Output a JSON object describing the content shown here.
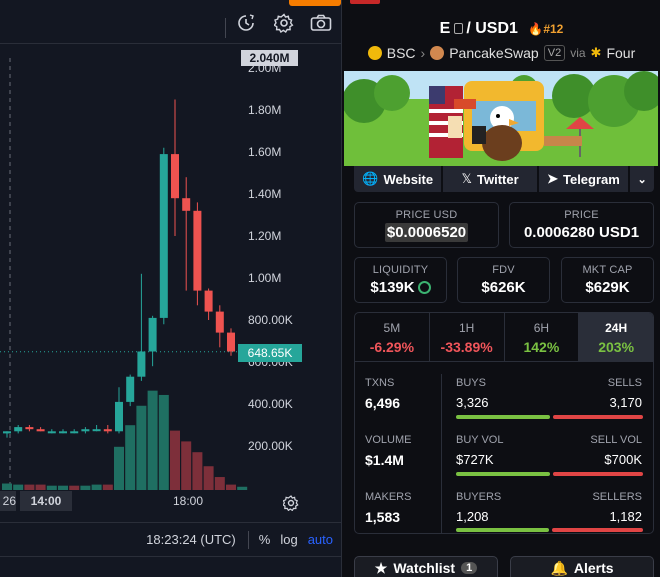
{
  "chart": {
    "top_price_tag": "2.040M",
    "last_price_tag": "648.65K",
    "x_date_tag": "26",
    "x_time_tag": "14:00",
    "x_label_1800": "18:00",
    "utc_time": "18:23:24 (UTC)",
    "percent_btn": "%",
    "log_btn": "log",
    "auto_btn": "auto",
    "colors": {
      "up": "#26a69a",
      "down": "#ef5350",
      "vol_up": "#1f6f62",
      "vol_down": "#7d2f3a"
    }
  },
  "chart_data": {
    "type": "candlestick",
    "y_ticks": [
      "2.00M",
      "1.80M",
      "1.60M",
      "1.40M",
      "1.20M",
      "1.00M",
      "800.00K",
      "600.00K",
      "400.00K",
      "200.00K"
    ],
    "y_tick_values": [
      2000000,
      1800000,
      1600000,
      1400000,
      1200000,
      1000000,
      800000,
      600000,
      400000,
      200000
    ],
    "x_ticks": [
      "14:00",
      "18:00"
    ],
    "ylim": [
      0,
      2060000
    ],
    "last_price": 648650,
    "candles": [
      {
        "o": 260000,
        "h": 270000,
        "l": 240000,
        "c": 270000
      },
      {
        "o": 270000,
        "h": 300000,
        "l": 260000,
        "c": 290000
      },
      {
        "o": 290000,
        "h": 300000,
        "l": 270000,
        "c": 280000
      },
      {
        "o": 280000,
        "h": 290000,
        "l": 270000,
        "c": 270000
      },
      {
        "o": 270000,
        "h": 280000,
        "l": 260000,
        "c": 270000
      },
      {
        "o": 270000,
        "h": 280000,
        "l": 260000,
        "c": 270000
      },
      {
        "o": 270000,
        "h": 280000,
        "l": 260000,
        "c": 270000
      },
      {
        "o": 270000,
        "h": 290000,
        "l": 260000,
        "c": 280000
      },
      {
        "o": 280000,
        "h": 300000,
        "l": 270000,
        "c": 280000
      },
      {
        "o": 280000,
        "h": 300000,
        "l": 260000,
        "c": 270000
      },
      {
        "o": 270000,
        "h": 480000,
        "l": 260000,
        "c": 410000
      },
      {
        "o": 410000,
        "h": 540000,
        "l": 390000,
        "c": 530000
      },
      {
        "o": 530000,
        "h": 1020000,
        "l": 510000,
        "c": 650000
      },
      {
        "o": 650000,
        "h": 820000,
        "l": 580000,
        "c": 810000
      },
      {
        "o": 810000,
        "h": 1620000,
        "l": 780000,
        "c": 1590000
      },
      {
        "o": 1590000,
        "h": 1850000,
        "l": 1200000,
        "c": 1380000
      },
      {
        "o": 1380000,
        "h": 1480000,
        "l": 940000,
        "c": 1320000
      },
      {
        "o": 1320000,
        "h": 1360000,
        "l": 870000,
        "c": 940000
      },
      {
        "o": 940000,
        "h": 950000,
        "l": 800000,
        "c": 840000
      },
      {
        "o": 840000,
        "h": 870000,
        "l": 670000,
        "c": 740000
      },
      {
        "o": 740000,
        "h": 760000,
        "l": 630000,
        "c": 650000
      },
      {
        "o": 650000,
        "h": 660000,
        "l": 630000,
        "c": 650000
      }
    ],
    "volume_relative": [
      0.06,
      0.05,
      0.05,
      0.05,
      0.04,
      0.04,
      0.04,
      0.04,
      0.05,
      0.05,
      0.4,
      0.6,
      0.78,
      0.92,
      0.88,
      0.55,
      0.45,
      0.35,
      0.22,
      0.12,
      0.05,
      0.03
    ],
    "volume_up": [
      true,
      true,
      false,
      false,
      true,
      true,
      false,
      true,
      true,
      false,
      true,
      true,
      true,
      true,
      true,
      false,
      false,
      false,
      false,
      false,
      false,
      true
    ]
  },
  "pair": {
    "base": "E",
    "quote": "USD1",
    "rank": "#12",
    "chain": "BSC",
    "dex": "PancakeSwap",
    "version": "V2",
    "via_label": "via",
    "launchpad": "Four"
  },
  "links": {
    "website": "Website",
    "twitter": "Twitter",
    "telegram": "Telegram"
  },
  "stats": {
    "price_usd_label": "PRICE USD",
    "price_usd": "$0.0006520",
    "price_label": "PRICE",
    "price": "0.0006280 USD1",
    "liquidity_label": "LIQUIDITY",
    "liquidity": "$139K",
    "fdv_label": "FDV",
    "fdv": "$626K",
    "mcap_label": "MKT CAP",
    "mcap": "$629K"
  },
  "periods": [
    {
      "label": "5M",
      "value": "-6.29%",
      "color": "#f0555a",
      "active": false
    },
    {
      "label": "1H",
      "value": "-33.89%",
      "color": "#f0555a",
      "active": false
    },
    {
      "label": "6H",
      "value": "142%",
      "color": "#7ac142",
      "active": false
    },
    {
      "label": "24H",
      "value": "203%",
      "color": "#7ac142",
      "active": true
    }
  ],
  "tx": {
    "txns_label": "TXNS",
    "txns": "6,496",
    "buys_label": "BUYS",
    "buys": "3,326",
    "sells_label": "SELLS",
    "sells": "3,170",
    "buys_share": 0.512,
    "volume_label": "VOLUME",
    "volume": "$1.4M",
    "buyvol_label": "BUY VOL",
    "buyvol": "$727K",
    "sellvol_label": "SELL VOL",
    "sellvol": "$700K",
    "buyvol_share": 0.509,
    "makers_label": "MAKERS",
    "makers": "1,583",
    "buyers_label": "BUYERS",
    "buyers": "1,208",
    "sellers_label": "SELLERS",
    "sellers": "1,182",
    "buyers_share": 0.505
  },
  "actions": {
    "watchlist": "Watchlist",
    "watch_count": "1",
    "alerts": "Alerts"
  }
}
